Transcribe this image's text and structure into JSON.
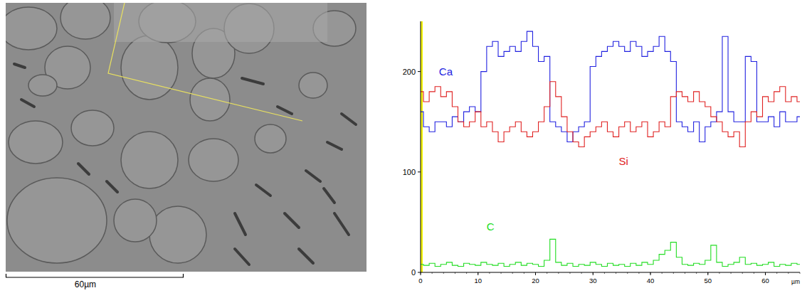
{
  "micrograph": {
    "scale_bar_label": "60µm"
  },
  "chart_data": {
    "type": "line",
    "x": [
      0,
      1,
      2,
      3,
      4,
      5,
      6,
      7,
      8,
      9,
      10,
      11,
      12,
      13,
      14,
      15,
      16,
      17,
      18,
      19,
      20,
      21,
      22,
      23,
      24,
      25,
      26,
      27,
      28,
      29,
      30,
      31,
      32,
      33,
      34,
      35,
      36,
      37,
      38,
      39,
      40,
      41,
      42,
      43,
      44,
      45,
      46,
      47,
      48,
      49,
      50,
      51,
      52,
      53,
      54,
      55,
      56,
      57,
      58,
      59,
      60,
      61,
      62,
      63,
      64,
      65,
      66
    ],
    "xlim": [
      0,
      66
    ],
    "ylim": [
      0,
      250
    ],
    "xticks": [
      0,
      10,
      20,
      30,
      40,
      50,
      60
    ],
    "yticks": [
      0,
      100,
      200
    ],
    "x_label": "µm",
    "grid": false,
    "series": [
      {
        "name": "Ca",
        "color": "#2222e0",
        "values": [
          160,
          145,
          140,
          150,
          150,
          145,
          155,
          150,
          160,
          165,
          160,
          200,
          225,
          230,
          215,
          220,
          225,
          220,
          230,
          240,
          225,
          210,
          215,
          150,
          145,
          140,
          130,
          140,
          145,
          150,
          205,
          215,
          220,
          225,
          230,
          225,
          220,
          230,
          225,
          215,
          220,
          225,
          235,
          220,
          210,
          150,
          145,
          140,
          150,
          130,
          145,
          150,
          160,
          235,
          160,
          150,
          150,
          215,
          210,
          150,
          150,
          155,
          145,
          160,
          150,
          150,
          155
        ]
      },
      {
        "name": "Si",
        "color": "#e02222",
        "values": [
          180,
          170,
          180,
          185,
          175,
          180,
          165,
          150,
          145,
          150,
          160,
          145,
          150,
          140,
          130,
          140,
          145,
          150,
          140,
          135,
          140,
          150,
          165,
          190,
          175,
          155,
          140,
          130,
          125,
          135,
          140,
          145,
          150,
          140,
          135,
          145,
          150,
          140,
          145,
          150,
          135,
          140,
          150,
          145,
          175,
          180,
          175,
          170,
          180,
          170,
          165,
          155,
          150,
          140,
          135,
          140,
          125,
          150,
          160,
          155,
          175,
          170,
          180,
          185,
          170,
          175,
          170
        ]
      },
      {
        "name": "C",
        "color": "#22dd22",
        "values": [
          8,
          7,
          9,
          6,
          8,
          10,
          7,
          6,
          9,
          8,
          7,
          10,
          8,
          7,
          9,
          6,
          8,
          10,
          7,
          9,
          8,
          6,
          12,
          33,
          10,
          7,
          9,
          6,
          8,
          7,
          10,
          8,
          6,
          9,
          7,
          8,
          6,
          9,
          7,
          10,
          8,
          12,
          18,
          22,
          30,
          15,
          8,
          7,
          9,
          8,
          12,
          27,
          10,
          6,
          8,
          10,
          15,
          8,
          9,
          7,
          8,
          10,
          6,
          8,
          7,
          9,
          8
        ]
      }
    ]
  }
}
